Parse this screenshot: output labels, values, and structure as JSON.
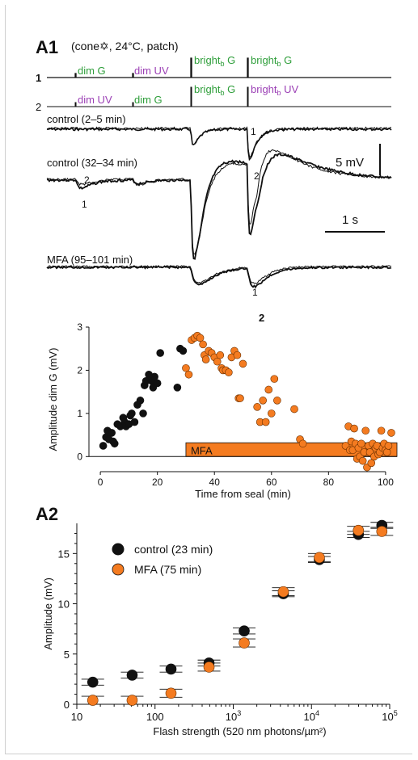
{
  "panel_a1": {
    "label": "A1",
    "condition": "(cone✡, 24°C, patch)",
    "protocol_rows": [
      {
        "number": "1",
        "labels": [
          "dim G",
          "dim UV",
          "bright",
          "bright"
        ],
        "subs": [
          "",
          "",
          "b",
          "b"
        ],
        "suffix": [
          "",
          "",
          " G",
          " G"
        ]
      },
      {
        "number": "2",
        "labels": [
          "dim UV",
          "dim G",
          "bright",
          "bright"
        ],
        "subs": [
          "",
          "",
          "b",
          "b"
        ],
        "suffix": [
          "",
          "",
          " G",
          " UV"
        ]
      }
    ],
    "trace_labels": {
      "control_early": "control (2–5 min)",
      "control_late": "control (32–34 min)",
      "mfa": "MFA (95–101 min)"
    },
    "trace_markers": {
      "one": "1",
      "two": "2"
    },
    "scale_bars": {
      "voltage": "5 mV",
      "time": "1 s"
    }
  },
  "panel_a2": {
    "label": "A2"
  },
  "colors": {
    "green": "#2e9e3a",
    "purple": "#9b3fb5",
    "orange": "#f47b20",
    "black": "#111111"
  },
  "chart_data": [
    {
      "type": "scatter",
      "xlabel": "Time from seal (min)",
      "ylabel": "Amplitude dim G (mV)",
      "xlim": [
        -4,
        104
      ],
      "ylim": [
        -0.35,
        3
      ],
      "xticks": [
        0,
        20,
        40,
        60,
        80,
        100
      ],
      "yticks": [
        0,
        1,
        2,
        3
      ],
      "annotation": {
        "text": "MFA",
        "x_start": 30,
        "x_end": 104,
        "y_low": 0,
        "y_high": 0.32
      },
      "series": [
        {
          "color": "#111111",
          "points": [
            [
              1,
              0.25
            ],
            [
              2,
              0.45
            ],
            [
              2.5,
              0.6
            ],
            [
              3,
              0.4
            ],
            [
              4,
              0.55
            ],
            [
              4.5,
              0.35
            ],
            [
              5,
              0.3
            ],
            [
              6,
              0.75
            ],
            [
              7,
              0.7
            ],
            [
              8,
              0.9
            ],
            [
              8.5,
              0.8
            ],
            [
              9,
              0.7
            ],
            [
              10,
              0.75
            ],
            [
              10.5,
              0.95
            ],
            [
              11,
              1.0
            ],
            [
              12,
              0.8
            ],
            [
              13,
              1.2
            ],
            [
              14,
              1.3
            ],
            [
              15,
              1.0
            ],
            [
              15.5,
              1.65
            ],
            [
              16,
              1.75
            ],
            [
              17,
              1.9
            ],
            [
              18,
              1.75
            ],
            [
              18.5,
              1.6
            ],
            [
              19,
              1.85
            ],
            [
              20,
              1.7
            ],
            [
              21,
              2.4
            ],
            [
              27,
              1.6
            ],
            [
              28,
              2.5
            ],
            [
              29,
              2.45
            ]
          ]
        },
        {
          "color": "#f47b20",
          "points": [
            [
              30,
              2.05
            ],
            [
              31,
              1.9
            ],
            [
              32,
              2.7
            ],
            [
              33,
              2.75
            ],
            [
              34,
              2.8
            ],
            [
              35,
              2.75
            ],
            [
              36,
              2.6
            ],
            [
              36.5,
              2.35
            ],
            [
              37,
              2.25
            ],
            [
              38,
              2.45
            ],
            [
              39,
              2.4
            ],
            [
              40,
              2.3
            ],
            [
              41,
              2.2
            ],
            [
              42,
              2.35
            ],
            [
              42.5,
              2.05
            ],
            [
              43,
              2.0
            ],
            [
              44,
              2.0
            ],
            [
              45,
              1.95
            ],
            [
              46,
              2.3
            ],
            [
              47,
              2.45
            ],
            [
              48,
              2.35
            ],
            [
              48.5,
              1.35
            ],
            [
              49,
              1.35
            ],
            [
              50,
              2.15
            ],
            [
              55,
              1.15
            ],
            [
              56,
              0.8
            ],
            [
              57,
              1.3
            ],
            [
              58,
              0.8
            ],
            [
              59,
              1.55
            ],
            [
              60,
              1.0
            ],
            [
              61,
              1.8
            ],
            [
              62,
              1.3
            ],
            [
              68,
              1.1
            ],
            [
              70,
              0.4
            ],
            [
              71,
              0.3
            ],
            [
              86,
              0.25
            ],
            [
              87,
              0.7
            ],
            [
              87.5,
              0.15
            ],
            [
              88,
              0.35
            ],
            [
              88.5,
              0.15
            ],
            [
              89,
              0.65
            ],
            [
              89.5,
              0.3
            ],
            [
              90,
              -0.05
            ],
            [
              90.5,
              0.2
            ],
            [
              91,
              0.0
            ],
            [
              91.5,
              0.3
            ],
            [
              92,
              -0.1
            ],
            [
              92.5,
              0.1
            ],
            [
              93,
              0.6
            ],
            [
              93.5,
              -0.25
            ],
            [
              94,
              0.25
            ],
            [
              94.5,
              0.1
            ],
            [
              95,
              -0.15
            ],
            [
              95.5,
              0.3
            ],
            [
              96,
              0.0
            ],
            [
              96.5,
              0.2
            ],
            [
              97,
              0.25
            ],
            [
              97.5,
              0.05
            ],
            [
              98,
              0.1
            ],
            [
              98.5,
              0.6
            ],
            [
              99,
              0.2
            ],
            [
              99.5,
              0.3
            ],
            [
              100,
              0.15
            ],
            [
              100.5,
              0.1
            ],
            [
              101,
              0.25
            ],
            [
              102,
              0.55
            ]
          ]
        }
      ]
    },
    {
      "type": "scatter",
      "xlabel": "Flash strength (520 nm photons/µm²)",
      "ylabel": "Amplitude (mV)",
      "xscale": "log",
      "xlim": [
        10,
        100000
      ],
      "ylim": [
        0,
        18
      ],
      "yticks": [
        0,
        5,
        10,
        15
      ],
      "xtick_labels": [
        {
          "base": "10",
          "exp": ""
        },
        {
          "base": "100",
          "exp": ""
        },
        {
          "base": "10",
          "exp": "3"
        },
        {
          "base": "10",
          "exp": "4"
        },
        {
          "base": "10",
          "exp": "5"
        }
      ],
      "legend_position": "top-left",
      "series": [
        {
          "name": "control (23 min)",
          "color": "#111111",
          "x": [
            16,
            51,
            160,
            490,
            1380,
            4370,
            12600,
            39800,
            79400
          ],
          "y": [
            2.2,
            2.9,
            3.5,
            4.1,
            7.3,
            11.0,
            14.4,
            16.9,
            17.8
          ],
          "err": [
            0.3,
            0.3,
            0.3,
            0.3,
            0.3,
            0.3,
            0.3,
            0.3,
            0.3
          ]
        },
        {
          "name": "MFA (75 min)",
          "color": "#f47b20",
          "x": [
            16,
            51,
            160,
            490,
            1380,
            4370,
            12600,
            39800,
            79400
          ],
          "y": [
            0.4,
            0.4,
            1.1,
            3.7,
            6.1,
            11.2,
            14.6,
            17.3,
            17.2
          ],
          "err": [
            0.4,
            0.4,
            0.4,
            0.4,
            0.4,
            0.4,
            0.4,
            0.4,
            0.4
          ]
        }
      ]
    }
  ]
}
